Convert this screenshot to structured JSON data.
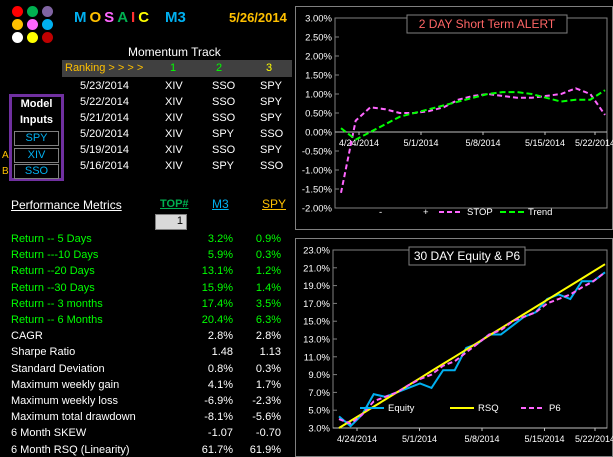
{
  "header": {
    "brand_letters": [
      "M",
      "O",
      "S",
      "A",
      "I",
      "C"
    ],
    "brand_colors": [
      "#00b0f0",
      "#ffc000",
      "#ff66ff",
      "#00b050",
      "#ff3030",
      "#ffff00"
    ],
    "logo_dot_colors": [
      "#ff0000",
      "#00b050",
      "#8064a2",
      "#ffc000",
      "#ff66ff",
      "#00b0f0",
      "#ffffff",
      "#ffff00",
      "#c00000"
    ],
    "m3": "M3",
    "date": "5/26/2014"
  },
  "momentum": {
    "title": "Momentum Track",
    "ranking_label": "Ranking  > > > >",
    "ranks": [
      "1",
      "2",
      "3"
    ],
    "rows": [
      {
        "date": "5/23/2014",
        "r1": "XIV",
        "r2": "SSO",
        "r3": "SPY"
      },
      {
        "date": "5/22/2014",
        "r1": "XIV",
        "r2": "SSO",
        "r3": "SPY"
      },
      {
        "date": "5/21/2014",
        "r1": "XIV",
        "r2": "SSO",
        "r3": "SPY"
      },
      {
        "date": "5/20/2014",
        "r1": "XIV",
        "r2": "SPY",
        "r3": "SSO"
      },
      {
        "date": "5/19/2014",
        "r1": "XIV",
        "r2": "SSO",
        "r3": "SPY"
      },
      {
        "date": "5/16/2014",
        "r1": "XIV",
        "r2": "SPY",
        "r3": "SSO"
      }
    ]
  },
  "model_inputs": {
    "label1": "Model",
    "label2": "Inputs",
    "items": [
      "SPY",
      "XIV",
      "SSO"
    ],
    "side_labels": [
      "",
      "A",
      "B"
    ]
  },
  "performance": {
    "title": "Performance Metrics",
    "top_label": "TOP#",
    "top_value": "1",
    "m3_label": "M3",
    "spy_label": "SPY",
    "rows": [
      {
        "label": "Return -- 5 Days",
        "m3": "3.2%",
        "spy": "0.9%",
        "green": true
      },
      {
        "label": "Return ---10 Days",
        "m3": "5.9%",
        "spy": "0.3%",
        "green": true
      },
      {
        "label": "Return --20 Days",
        "m3": "13.1%",
        "spy": "1.2%",
        "green": true
      },
      {
        "label": "Return --30 Days",
        "m3": "15.9%",
        "spy": "1.4%",
        "green": true
      },
      {
        "label": "Return -- 3 months",
        "m3": "17.4%",
        "spy": "3.5%",
        "green": true
      },
      {
        "label": "Return -- 6 Months",
        "m3": "20.4%",
        "spy": "6.3%",
        "green": true
      },
      {
        "label": "CAGR",
        "m3": "2.8%",
        "spy": "2.8%",
        "green": false
      },
      {
        "label": "Sharpe Ratio",
        "m3": "1.48",
        "spy": "1.13",
        "green": false
      },
      {
        "label": "Standard Deviation",
        "m3": "0.8%",
        "spy": "0.3%",
        "green": false
      },
      {
        "label": "Maximum weekly gain",
        "m3": "4.1%",
        "spy": "1.7%",
        "green": false
      },
      {
        "label": "Maximum weekly loss",
        "m3": "-6.9%",
        "spy": "-2.3%",
        "green": false
      },
      {
        "label": "Maximum total drawdown",
        "m3": "-8.1%",
        "spy": "-5.6%",
        "green": false
      },
      {
        "label": "6 Month SKEW",
        "m3": "-1.07",
        "spy": "-0.70",
        "green": false
      },
      {
        "label": "6 Month RSQ  (Linearity)",
        "m3": "61.7%",
        "spy": "61.9%",
        "green": false
      }
    ]
  },
  "chart_data": [
    {
      "type": "line",
      "title": "2 DAY Short  Term  ALERT",
      "ylim": [
        -2.0,
        3.0
      ],
      "yticks": [
        "3.00%",
        "2.50%",
        "2.00%",
        "1.50%",
        "1.00%",
        "0.50%",
        "0.00%",
        "-0.50%",
        "-1.00%",
        "-1.50%",
        "-2.00%"
      ],
      "xticks": [
        "4/24/2014",
        "5/1/2014",
        "5/8/2014",
        "5/15/2014",
        "5/22/2014"
      ],
      "legend": [
        "-",
        "+",
        "STOP",
        "Trend"
      ],
      "series": [
        {
          "name": "STOP",
          "color": "#ff66ff",
          "dash": "5,3",
          "values": [
            -1.6,
            0.3,
            0.65,
            0.6,
            0.5,
            0.5,
            0.55,
            0.65,
            0.85,
            0.95,
            1.0,
            0.95,
            0.9,
            0.9,
            0.95,
            1.0,
            1.15,
            1.0,
            0.45
          ]
        },
        {
          "name": "Trend",
          "color": "#00ff00",
          "dash": "6,3",
          "values": [
            0.1,
            -0.2,
            0.0,
            0.2,
            0.4,
            0.5,
            0.6,
            0.7,
            0.8,
            0.9,
            1.0,
            1.05,
            1.05,
            1.0,
            0.9,
            0.8,
            0.85,
            0.85,
            1.1
          ]
        }
      ]
    },
    {
      "type": "line",
      "title": "30 DAY  Equity & P6",
      "ylim": [
        3.0,
        23.0
      ],
      "yticks": [
        "23.0%",
        "21.0%",
        "19.0%",
        "17.0%",
        "15.0%",
        "13.0%",
        "11.0%",
        "9.0%",
        "7.0%",
        "5.0%",
        "3.0%"
      ],
      "xticks": [
        "4/24/2014",
        "5/1/2014",
        "5/8/2014",
        "5/15/2014",
        "5/22/2014"
      ],
      "legend": [
        "Equity",
        "RSQ",
        "P6"
      ],
      "series": [
        {
          "name": "Equity",
          "color": "#00b0f0",
          "dash": "",
          "values": [
            4.3,
            3.2,
            4.5,
            6.8,
            6.5,
            7.0,
            7.5,
            8.0,
            7.5,
            9.5,
            9.5,
            12.0,
            12.5,
            13.5,
            13.5,
            14.5,
            15.5,
            16.0,
            17.5,
            18.0,
            17.5,
            19.5,
            19.5,
            20.5
          ]
        },
        {
          "name": "RSQ",
          "color": "#ffff00",
          "dash": "",
          "values": [
            3.0,
            3.8,
            4.6,
            5.4,
            6.2,
            7.0,
            7.8,
            8.6,
            9.4,
            10.2,
            11.0,
            11.8,
            12.6,
            13.4,
            14.2,
            15.0,
            15.8,
            16.6,
            17.4,
            18.2,
            19.0,
            19.8,
            20.6,
            21.4
          ]
        },
        {
          "name": "P6",
          "color": "#ff66ff",
          "dash": "5,3",
          "values": [
            4.0,
            3.5,
            4.5,
            6.0,
            6.5,
            7.0,
            7.8,
            8.5,
            9.0,
            10.0,
            10.5,
            11.5,
            12.5,
            13.5,
            14.0,
            15.0,
            15.5,
            16.0,
            17.0,
            17.5,
            18.0,
            18.8,
            19.5,
            20.5
          ]
        }
      ]
    }
  ]
}
